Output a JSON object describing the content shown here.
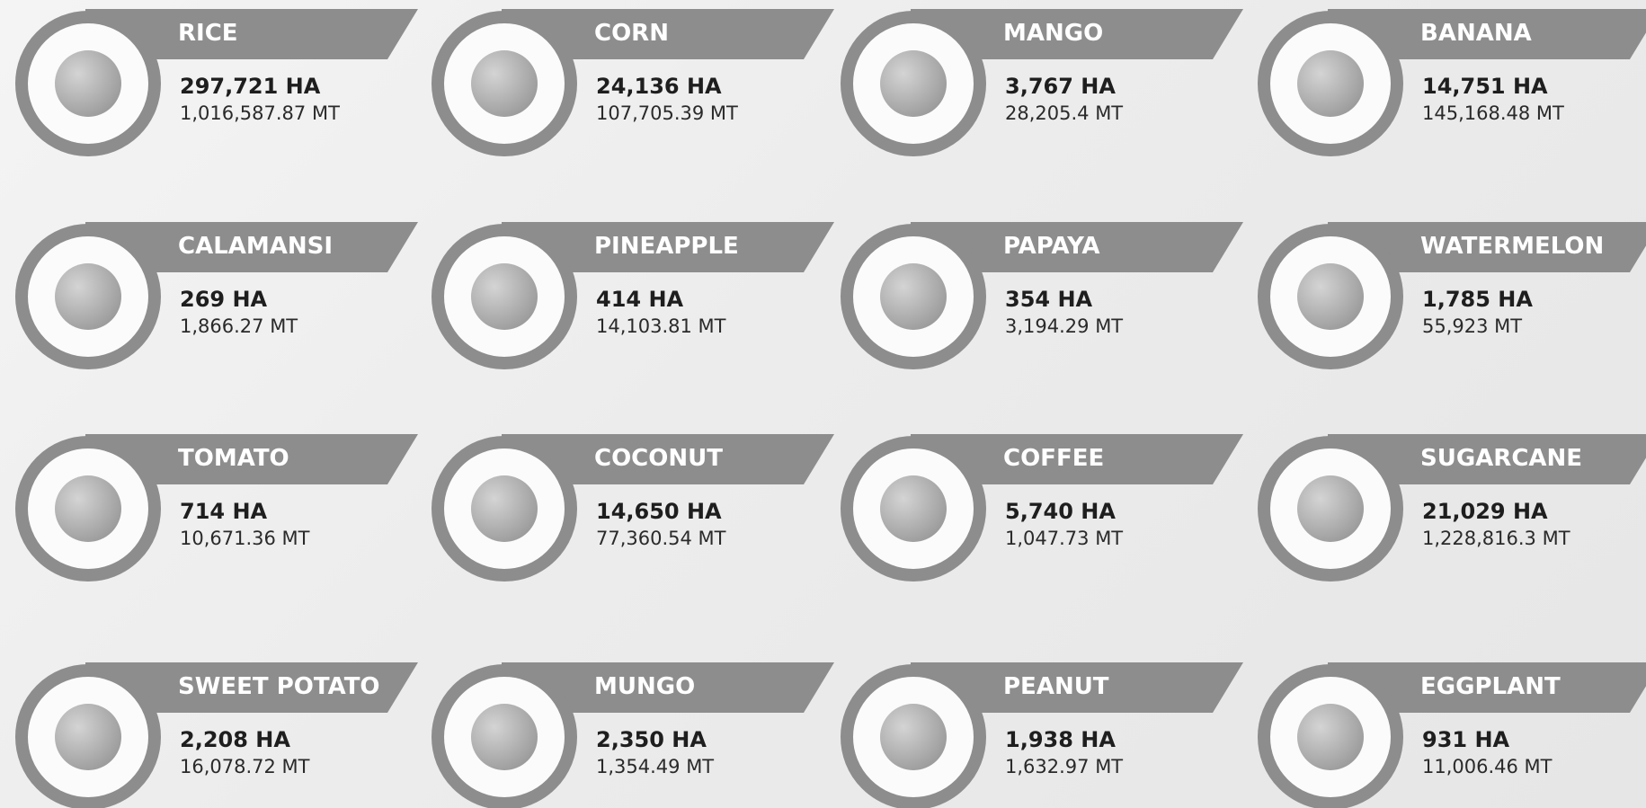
{
  "items": [
    {
      "name": "RICE",
      "area": "297,721 HA",
      "production": "1,016,587.87 MT"
    },
    {
      "name": "CORN",
      "area": "24,136 HA",
      "production": "107,705.39 MT"
    },
    {
      "name": "MANGO",
      "area": "3,767 HA",
      "production": "28,205.4 MT"
    },
    {
      "name": "BANANA",
      "area": "14,751 HA",
      "production": "145,168.48 MT"
    },
    {
      "name": "CALAMANSI",
      "area": "269 HA",
      "production": "1,866.27 MT"
    },
    {
      "name": "PINEAPPLE",
      "area": "414 HA",
      "production": "14,103.81 MT"
    },
    {
      "name": "PAPAYA",
      "area": "354 HA",
      "production": "3,194.29 MT"
    },
    {
      "name": "WATERMELON",
      "area": "1,785 HA",
      "production": "55,923 MT"
    },
    {
      "name": "TOMATO",
      "area": "714 HA",
      "production": "10,671.36 MT"
    },
    {
      "name": "COCONUT",
      "area": "14,650 HA",
      "production": "77,360.54 MT"
    },
    {
      "name": "COFFEE",
      "area": "5,740 HA",
      "production": "1,047.73 MT"
    },
    {
      "name": "SUGARCANE",
      "area": "21,029 HA",
      "production": "1,228,816.3 MT"
    },
    {
      "name": "SWEET POTATO",
      "area": "2,208 HA",
      "production": "16,078.72 MT"
    },
    {
      "name": "MUNGO",
      "area": "2,350 HA",
      "production": "1,354.49 MT"
    },
    {
      "name": "PEANUT",
      "area": "1,938 HA",
      "production": "1,632.97 MT"
    },
    {
      "name": "EGGPLANT",
      "area": "931 HA",
      "production": "11,006.46 MT"
    }
  ]
}
